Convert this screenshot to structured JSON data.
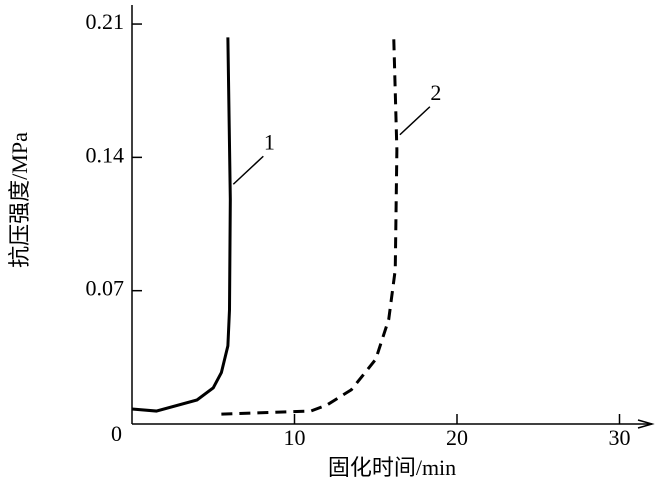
{
  "chart_data": {
    "type": "line",
    "x_label": "固化时间/min",
    "y_label": "抗压强度/MPa",
    "xlim": [
      0,
      32
    ],
    "ylim": [
      0,
      0.22
    ],
    "xticks": [
      10,
      20,
      30
    ],
    "yticks": [
      0,
      0.07,
      0.14,
      0.21
    ],
    "series": [
      {
        "name": "1",
        "color": "#000000",
        "style": "solid",
        "x": [
          0,
          1.5,
          4,
          5,
          5.5,
          5.9,
          6,
          6.05,
          5.9
        ],
        "values": [
          0.0079,
          0.0068,
          0.0126,
          0.019,
          0.027,
          0.041,
          0.06,
          0.118,
          0.203
        ]
      },
      {
        "name": "2",
        "color": "#000000",
        "style": "dashed",
        "x": [
          5.5,
          11,
          12,
          13.5,
          15,
          15.8,
          16.2,
          16.3,
          16.1
        ],
        "values": [
          0.0052,
          0.0068,
          0.01,
          0.018,
          0.034,
          0.055,
          0.081,
          0.144,
          0.205
        ]
      }
    ]
  }
}
